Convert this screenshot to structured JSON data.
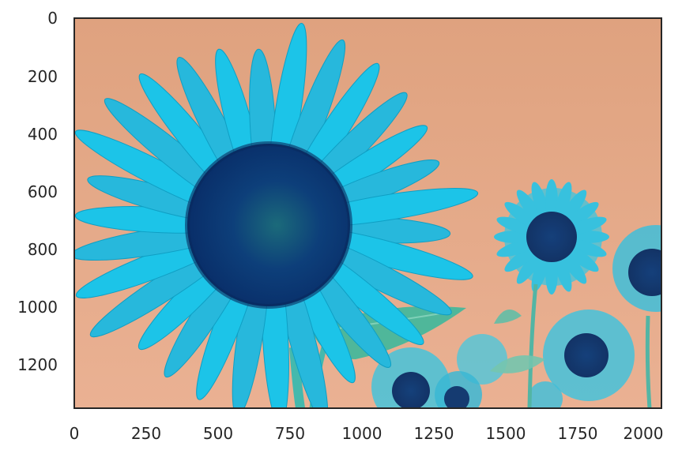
{
  "figure": {
    "x_ticks": [
      "0",
      "250",
      "500",
      "750",
      "1000",
      "1250",
      "1500",
      "1750",
      "2000"
    ],
    "y_ticks": [
      "0",
      "200",
      "400",
      "600",
      "800",
      "1000",
      "1200"
    ],
    "image_description_colors": {
      "sky": "#e2a886",
      "petal": "#22c8e6",
      "disc": "#0a3a78",
      "leaf": "#4db8a0",
      "stem": "#3fb0b0"
    }
  }
}
